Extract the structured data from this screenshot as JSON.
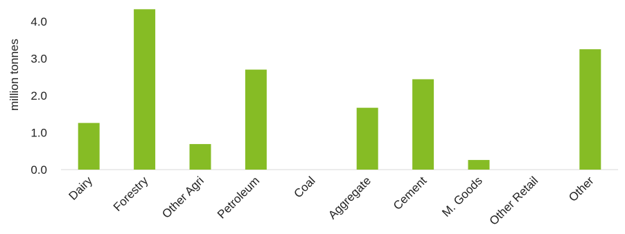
{
  "chart_data": {
    "type": "bar",
    "title": "",
    "xlabel": "",
    "ylabel": "million tonnes",
    "categories": [
      "Dairy",
      "Forestry",
      "Other Agri",
      "Petroleum",
      "Coal",
      "Aggregate",
      "Cement",
      "M. Goods",
      "Other Retail",
      "Other"
    ],
    "values": [
      1.26,
      4.33,
      0.69,
      2.7,
      0.0,
      1.67,
      2.44,
      0.26,
      0.0,
      3.25
    ],
    "ylim": [
      0,
      4.0
    ],
    "yticks": [
      "0.0",
      "1.0",
      "2.0",
      "3.0",
      "4.0"
    ],
    "bar_color": "#86bc25",
    "grid": false,
    "legend": "none"
  }
}
